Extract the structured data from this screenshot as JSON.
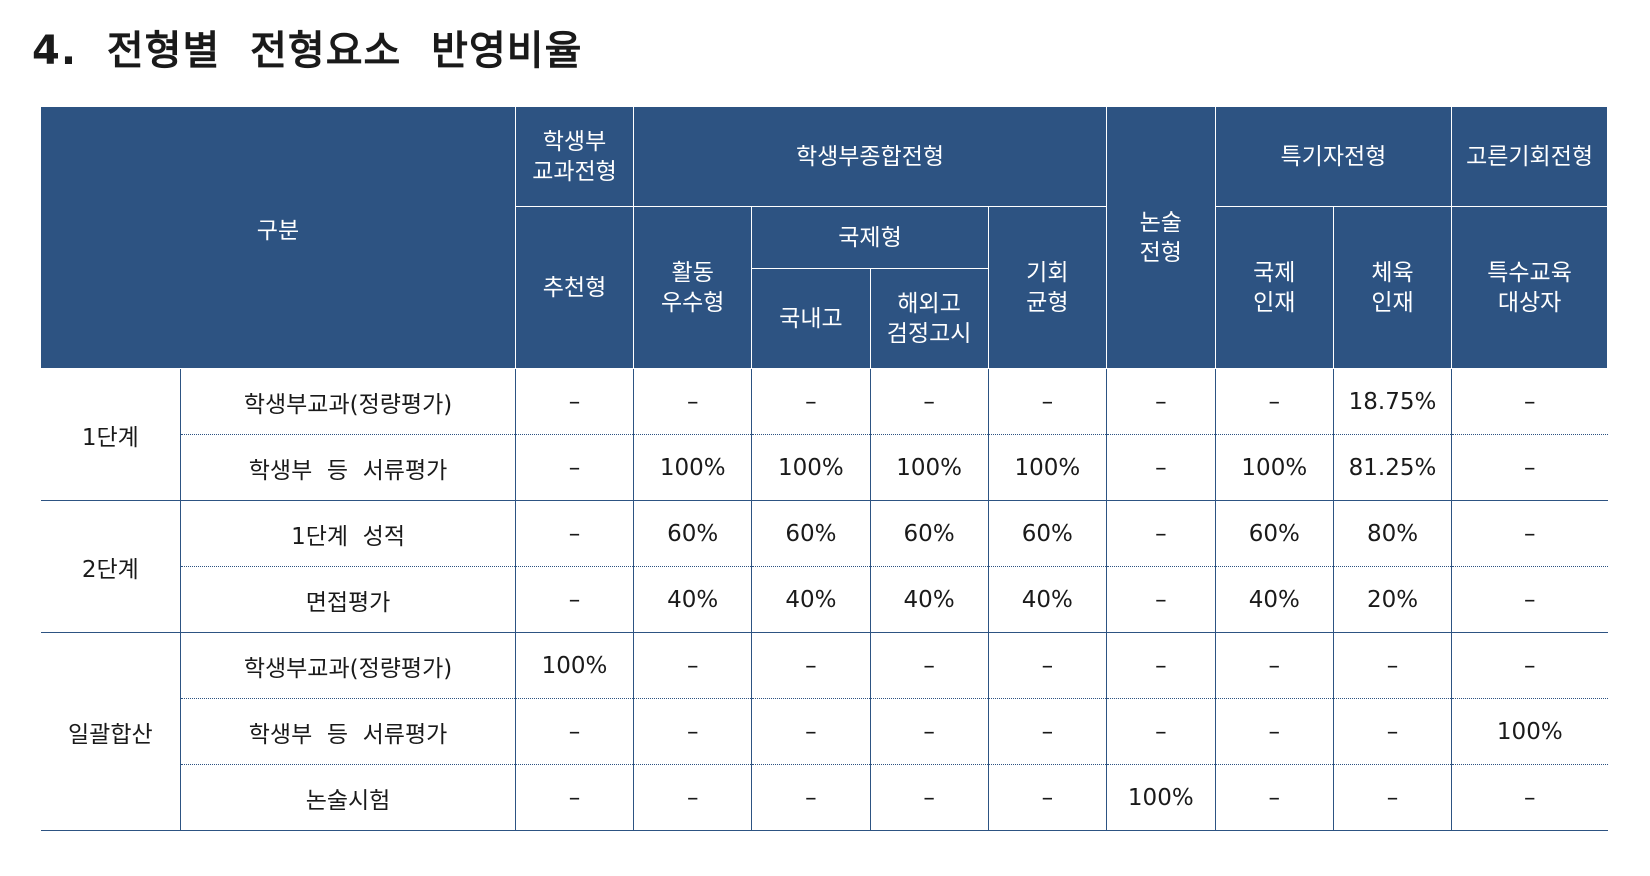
{
  "title": "4.  전형별  전형요소  반영비율",
  "header": {
    "gubun": "구분",
    "group_gyogwa": "학생부\n교과전형",
    "group_jonghap": "학생부종합전형",
    "group_nonsul": "논술\n전형",
    "group_teukgi": "특기자전형",
    "group_goreun": "고른기회전형",
    "sub_chucheon": "추천형",
    "sub_hwaldong": "활동\n우수형",
    "sub_gukje": "국제형",
    "sub_gukje_domestic": "국내고",
    "sub_gukje_overseas": "해외고\n검정고시",
    "sub_gihoe": "기회\n균형",
    "sub_gukje_injae": "국제\n인재",
    "sub_cheyuk_injae": "체육\n인재",
    "sub_teuksu": "특수교육\n대상자"
  },
  "stages": [
    {
      "name": "1단계",
      "rows": [
        {
          "item": "학생부교과(정량평가)",
          "values": [
            "–",
            "–",
            "–",
            "–",
            "–",
            "–",
            "–",
            "18.75%",
            "–"
          ]
        },
        {
          "item": "학생부  등  서류평가",
          "values": [
            "–",
            "100%",
            "100%",
            "100%",
            "100%",
            "–",
            "100%",
            "81.25%",
            "–"
          ]
        }
      ]
    },
    {
      "name": "2단계",
      "rows": [
        {
          "item": "1단계  성적",
          "values": [
            "–",
            "60%",
            "60%",
            "60%",
            "60%",
            "–",
            "60%",
            "80%",
            "–"
          ]
        },
        {
          "item": "면접평가",
          "values": [
            "–",
            "40%",
            "40%",
            "40%",
            "40%",
            "–",
            "40%",
            "20%",
            "–"
          ]
        }
      ]
    },
    {
      "name": "일괄합산",
      "rows": [
        {
          "item": "학생부교과(정량평가)",
          "values": [
            "100%",
            "–",
            "–",
            "–",
            "–",
            "–",
            "–",
            "–",
            "–"
          ]
        },
        {
          "item": "학생부  등  서류평가",
          "values": [
            "–",
            "–",
            "–",
            "–",
            "–",
            "–",
            "–",
            "–",
            "100%"
          ]
        },
        {
          "item": "논술시험",
          "values": [
            "–",
            "–",
            "–",
            "–",
            "–",
            "100%",
            "–",
            "–",
            "–"
          ]
        }
      ]
    }
  ],
  "colors": {
    "header_bg": "#2d5382",
    "border": "#2d5382",
    "header_text": "#ffffff"
  }
}
